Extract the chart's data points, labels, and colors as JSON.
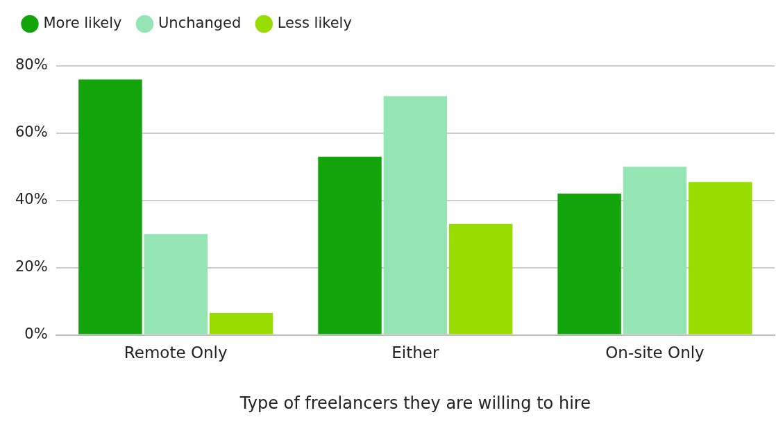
{
  "chart_data": {
    "type": "bar",
    "xlabel": "Type of freelancers they are willing to hire",
    "categories": [
      "Remote Only",
      "Either",
      "On-site Only"
    ],
    "series": [
      {
        "name": "More likely",
        "color": "#12a40a",
        "values": [
          76,
          53,
          42
        ]
      },
      {
        "name": "Unchanged",
        "color": "#94e4b4",
        "values": [
          30,
          71,
          50
        ]
      },
      {
        "name": "Less likely",
        "color": "#99dd00",
        "values": [
          6.5,
          33,
          45.5
        ]
      }
    ],
    "ylim": [
      0,
      80
    ],
    "yticks": [
      {
        "value": 0,
        "label": "0%"
      },
      {
        "value": 20,
        "label": "20%"
      },
      {
        "value": 40,
        "label": "40%"
      },
      {
        "value": 60,
        "label": "60%"
      },
      {
        "value": 80,
        "label": "80%"
      }
    ],
    "grid": "y",
    "legend": "top left"
  }
}
